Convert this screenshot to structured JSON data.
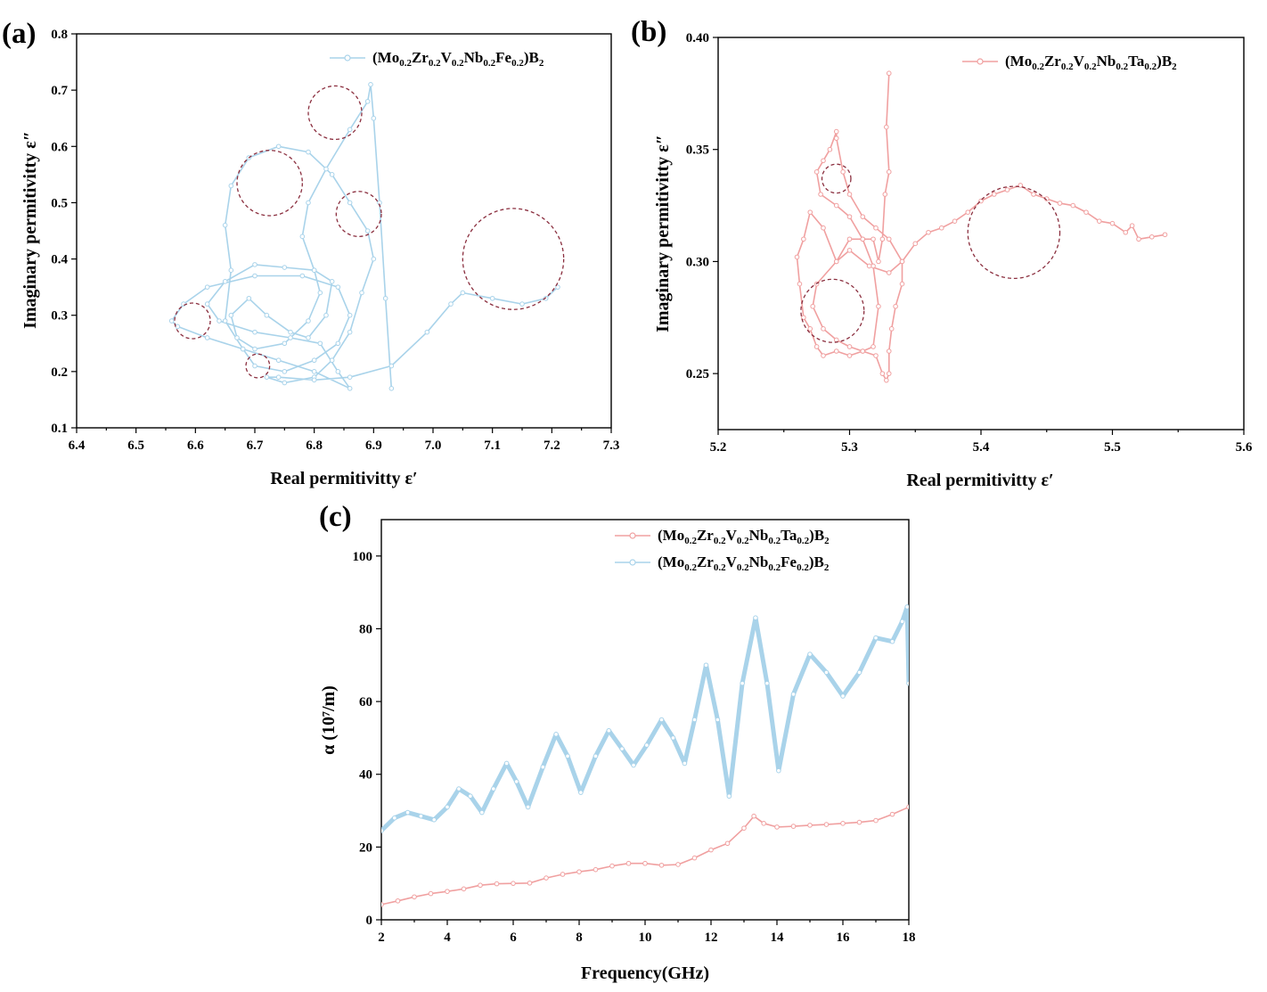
{
  "colors": {
    "fe": "#a9d3ea",
    "ta": "#f0a0a0",
    "circle": "#8b2f3f"
  },
  "chart_data": [
    {
      "id": "a",
      "type": "scatter",
      "panel_label": "(a)",
      "xlabel": "Real permitivitty  ε′",
      "ylabel": "Imaginary permitivitty  ε″",
      "xlim": [
        6.4,
        7.3
      ],
      "ylim": [
        0.1,
        0.8
      ],
      "xticks": [
        "6.4",
        "6.5",
        "6.6",
        "6.7",
        "6.8",
        "6.9",
        "7.0",
        "7.1",
        "7.2",
        "7.3"
      ],
      "yticks": [
        "0.1",
        "0.2",
        "0.3",
        "0.4",
        "0.5",
        "0.6",
        "0.7",
        "0.8"
      ],
      "legend": "top-right",
      "series": [
        {
          "name": "(Mo0.2Zr0.2V0.2Nb0.2Fe0.2)B2",
          "name_parts": [
            "(Mo",
            "0.2",
            "Zr",
            "0.2",
            "V",
            "0.2",
            "Nb",
            "0.2",
            "Fe",
            "0.2",
            ")B",
            "2"
          ],
          "color": "#a9d3ea",
          "points": [
            [
              6.93,
              0.17
            ],
            [
              6.92,
              0.33
            ],
            [
              6.91,
              0.5
            ],
            [
              6.9,
              0.65
            ],
            [
              6.895,
              0.71
            ],
            [
              6.89,
              0.68
            ],
            [
              6.86,
              0.63
            ],
            [
              6.82,
              0.56
            ],
            [
              6.79,
              0.5
            ],
            [
              6.78,
              0.44
            ],
            [
              6.8,
              0.38
            ],
            [
              6.83,
              0.36
            ],
            [
              6.82,
              0.3
            ],
            [
              6.79,
              0.26
            ],
            [
              6.76,
              0.27
            ],
            [
              6.72,
              0.3
            ],
            [
              6.69,
              0.33
            ],
            [
              6.66,
              0.3
            ],
            [
              6.67,
              0.26
            ],
            [
              6.7,
              0.24
            ],
            [
              6.75,
              0.25
            ],
            [
              6.79,
              0.29
            ],
            [
              6.81,
              0.34
            ],
            [
              6.8,
              0.38
            ],
            [
              6.75,
              0.385
            ],
            [
              6.7,
              0.39
            ],
            [
              6.65,
              0.36
            ],
            [
              6.62,
              0.32
            ],
            [
              6.64,
              0.29
            ],
            [
              6.7,
              0.27
            ],
            [
              6.76,
              0.26
            ],
            [
              6.81,
              0.25
            ],
            [
              6.84,
              0.2
            ],
            [
              6.86,
              0.17
            ],
            [
              6.8,
              0.2
            ],
            [
              6.74,
              0.22
            ],
            [
              6.68,
              0.24
            ],
            [
              6.62,
              0.26
            ],
            [
              6.57,
              0.28
            ],
            [
              6.56,
              0.29
            ],
            [
              6.58,
              0.32
            ],
            [
              6.62,
              0.35
            ],
            [
              6.7,
              0.37
            ],
            [
              6.78,
              0.37
            ],
            [
              6.84,
              0.35
            ],
            [
              6.86,
              0.3
            ],
            [
              6.84,
              0.25
            ],
            [
              6.8,
              0.22
            ],
            [
              6.75,
              0.2
            ],
            [
              6.7,
              0.21
            ],
            [
              6.68,
              0.24
            ],
            [
              6.65,
              0.29
            ],
            [
              6.66,
              0.38
            ],
            [
              6.65,
              0.46
            ],
            [
              6.66,
              0.53
            ],
            [
              6.69,
              0.58
            ],
            [
              6.74,
              0.6
            ],
            [
              6.79,
              0.59
            ],
            [
              6.83,
              0.55
            ],
            [
              6.86,
              0.5
            ],
            [
              6.89,
              0.45
            ],
            [
              6.9,
              0.4
            ],
            [
              6.88,
              0.34
            ],
            [
              6.86,
              0.27
            ],
            [
              6.83,
              0.22
            ],
            [
              6.8,
              0.19
            ],
            [
              6.75,
              0.18
            ],
            [
              6.72,
              0.19
            ],
            [
              6.74,
              0.19
            ],
            [
              6.8,
              0.185
            ],
            [
              6.86,
              0.19
            ],
            [
              6.93,
              0.21
            ],
            [
              6.99,
              0.27
            ],
            [
              7.03,
              0.32
            ],
            [
              7.05,
              0.34
            ],
            [
              7.1,
              0.33
            ],
            [
              7.15,
              0.32
            ],
            [
              7.19,
              0.33
            ],
            [
              7.21,
              0.35
            ]
          ]
        }
      ],
      "circles": [
        [
          6.595,
          0.29,
          0.03
        ],
        [
          6.705,
          0.21,
          0.02
        ],
        [
          6.725,
          0.535,
          0.055
        ],
        [
          6.835,
          0.66,
          0.045
        ],
        [
          6.875,
          0.48,
          0.038
        ],
        [
          7.135,
          0.4,
          0.085
        ]
      ]
    },
    {
      "id": "b",
      "type": "line",
      "panel_label": "(b)",
      "xlabel": "Real permitivitty  ε′",
      "ylabel": "Imaginary permitivitty  ε″",
      "xlim": [
        5.2,
        5.6
      ],
      "ylim": [
        0.225,
        0.4
      ],
      "xticks": [
        "5.2",
        "5.3",
        "5.4",
        "5.5",
        "5.6"
      ],
      "yticks": [
        "0.25",
        "0.30",
        "0.35",
        "0.40"
      ],
      "ytick_values": [
        0.25,
        0.3,
        0.35,
        0.4
      ],
      "legend": "top-right",
      "series": [
        {
          "name": "(Mo0.2Zr0.2V0.2Nb0.2Ta0.2)B2",
          "name_parts": [
            "(Mo",
            "0.2",
            "Zr",
            "0.2",
            "V",
            "0.2",
            "Nb",
            "0.2",
            "Ta",
            "0.2",
            ")B",
            "2"
          ],
          "color": "#f0a0a0",
          "points": [
            [
              5.33,
              0.384
            ],
            [
              5.328,
              0.36
            ],
            [
              5.33,
              0.34
            ],
            [
              5.327,
              0.33
            ],
            [
              5.325,
              0.31
            ],
            [
              5.322,
              0.3
            ],
            [
              5.318,
              0.31
            ],
            [
              5.31,
              0.31
            ],
            [
              5.3,
              0.31
            ],
            [
              5.29,
              0.3
            ],
            [
              5.28,
              0.315
            ],
            [
              5.27,
              0.322
            ],
            [
              5.265,
              0.31
            ],
            [
              5.26,
              0.302
            ],
            [
              5.262,
              0.29
            ],
            [
              5.265,
              0.275
            ],
            [
              5.27,
              0.27
            ],
            [
              5.275,
              0.262
            ],
            [
              5.28,
              0.258
            ],
            [
              5.29,
              0.26
            ],
            [
              5.3,
              0.258
            ],
            [
              5.31,
              0.26
            ],
            [
              5.32,
              0.258
            ],
            [
              5.325,
              0.25
            ],
            [
              5.328,
              0.247
            ],
            [
              5.33,
              0.25
            ],
            [
              5.33,
              0.26
            ],
            [
              5.332,
              0.27
            ],
            [
              5.335,
              0.28
            ],
            [
              5.34,
              0.29
            ],
            [
              5.34,
              0.3
            ],
            [
              5.33,
              0.31
            ],
            [
              5.32,
              0.315
            ],
            [
              5.31,
              0.32
            ],
            [
              5.3,
              0.33
            ],
            [
              5.295,
              0.34
            ],
            [
              5.29,
              0.355
            ],
            [
              5.29,
              0.358
            ],
            [
              5.285,
              0.35
            ],
            [
              5.28,
              0.345
            ],
            [
              5.275,
              0.34
            ],
            [
              5.278,
              0.33
            ],
            [
              5.29,
              0.325
            ],
            [
              5.3,
              0.32
            ],
            [
              5.31,
              0.31
            ],
            [
              5.318,
              0.298
            ],
            [
              5.322,
              0.28
            ],
            [
              5.318,
              0.262
            ],
            [
              5.31,
              0.26
            ],
            [
              5.3,
              0.262
            ],
            [
              5.29,
              0.265
            ],
            [
              5.28,
              0.27
            ],
            [
              5.272,
              0.28
            ],
            [
              5.275,
              0.29
            ],
            [
              5.29,
              0.3
            ],
            [
              5.3,
              0.305
            ],
            [
              5.315,
              0.298
            ],
            [
              5.33,
              0.295
            ],
            [
              5.34,
              0.3
            ],
            [
              5.35,
              0.308
            ],
            [
              5.36,
              0.313
            ],
            [
              5.37,
              0.315
            ],
            [
              5.38,
              0.318
            ],
            [
              5.39,
              0.322
            ],
            [
              5.4,
              0.327
            ],
            [
              5.41,
              0.33
            ],
            [
              5.42,
              0.332
            ],
            [
              5.43,
              0.334
            ],
            [
              5.44,
              0.33
            ],
            [
              5.45,
              0.328
            ],
            [
              5.46,
              0.326
            ],
            [
              5.47,
              0.325
            ],
            [
              5.48,
              0.322
            ],
            [
              5.49,
              0.318
            ],
            [
              5.5,
              0.317
            ],
            [
              5.51,
              0.313
            ],
            [
              5.515,
              0.316
            ],
            [
              5.52,
              0.31
            ],
            [
              5.53,
              0.311
            ],
            [
              5.54,
              0.312
            ]
          ]
        }
      ],
      "circles": [
        [
          5.29,
          0.337,
          0.011
        ],
        [
          5.287,
          0.278,
          0.024
        ],
        [
          5.425,
          0.313,
          0.035
        ]
      ]
    },
    {
      "id": "c",
      "type": "line",
      "panel_label": "(c)",
      "xlabel": "Frequency(GHz)",
      "ylabel": "α (10⁷/m)",
      "xlim": [
        2,
        18
      ],
      "ylim": [
        0,
        110
      ],
      "xticks": [
        "2",
        "4",
        "6",
        "8",
        "10",
        "12",
        "14",
        "16",
        "18"
      ],
      "yticks": [
        "0",
        "20",
        "40",
        "60",
        "80",
        "100"
      ],
      "legend": "top-right",
      "series": [
        {
          "name": "(Mo0.2Zr0.2V0.2Nb0.2Ta0.2)B2",
          "name_parts": [
            "(Mo",
            "0.2",
            "Zr",
            "0.2",
            "V",
            "0.2",
            "Nb",
            "0.2",
            "Ta",
            "0.2",
            ")B",
            "2"
          ],
          "color": "#f0a0a0",
          "x": [
            2,
            2.5,
            3,
            3.5,
            4,
            4.5,
            5,
            5.5,
            6,
            6.5,
            7,
            7.5,
            8,
            8.5,
            9,
            9.5,
            10,
            10.5,
            11,
            11.5,
            12,
            12.5,
            13,
            13.3,
            13.6,
            14,
            14.5,
            15,
            15.5,
            16,
            16.5,
            17,
            17.5,
            18
          ],
          "y": [
            4.2,
            5.2,
            6.3,
            7.2,
            7.8,
            8.5,
            9.5,
            9.9,
            10,
            10.1,
            11.5,
            12.5,
            13.2,
            13.8,
            14.8,
            15.5,
            15.5,
            15,
            15.2,
            17,
            19.2,
            21,
            25.2,
            28.5,
            26.5,
            25.5,
            25.7,
            26,
            26.2,
            26.5,
            26.8,
            27.3,
            29,
            31
          ]
        },
        {
          "name": "(Mo0.2Zr0.2V0.2Nb0.2Fe0.2)B2",
          "name_parts": [
            "(Mo",
            "0.2",
            "Zr",
            "0.2",
            "V",
            "0.2",
            "Nb",
            "0.2",
            "Fe",
            "0.2",
            ")B",
            "2"
          ],
          "color": "#a9d3ea",
          "x": [
            2,
            2.4,
            2.8,
            3.2,
            3.6,
            4,
            4.35,
            4.7,
            5.05,
            5.4,
            5.8,
            6.1,
            6.45,
            6.9,
            7.3,
            7.65,
            8.05,
            8.5,
            8.9,
            9.3,
            9.65,
            10.05,
            10.5,
            10.85,
            11.2,
            11.5,
            11.85,
            12.2,
            12.55,
            12.95,
            13.35,
            13.7,
            14.05,
            14.5,
            15,
            15.5,
            16,
            16.5,
            17,
            17.5,
            17.8,
            17.95,
            18
          ],
          "y": [
            24.5,
            28,
            29.5,
            28.5,
            27.5,
            31,
            36,
            34,
            29.5,
            36,
            43,
            38,
            31,
            42,
            51,
            45,
            35,
            45,
            52,
            47,
            42.5,
            48,
            55,
            50,
            43,
            55,
            70,
            55,
            34,
            65,
            83,
            65,
            41,
            62,
            73,
            68,
            61.5,
            68,
            77.5,
            76.5,
            82,
            86,
            65
          ]
        }
      ]
    }
  ]
}
